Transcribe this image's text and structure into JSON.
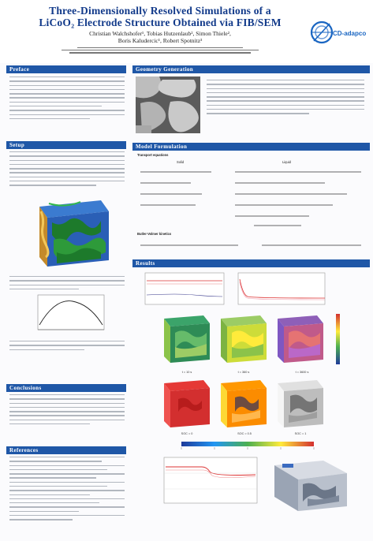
{
  "poster": {
    "title_line1": "Three-Dimensionally Resolved Simulations of a",
    "title_line2": "LiCoO₂ Electrode Structure Obtained via FIB/SEM",
    "authors_line1": "Christian Walchshofer¹, Tobias Hutzenlaub², Simon Thiele²,",
    "authors_line2": "Boris Kaludercic¹, Robert Spotnitz³",
    "logo_text": "CD-adapco"
  },
  "sections": {
    "preface": "Preface",
    "geometry": "Geometry Generation",
    "setup": "Setup",
    "model": "Model Formulation",
    "results": "Results",
    "conclusions": "Conclusions",
    "references": "References"
  },
  "model": {
    "transport_label": "Transport equations",
    "solid_label": "Solid",
    "liquid_label": "Liquid",
    "butler_label": "Butler-Volmer kinetics"
  },
  "results_labels": {
    "temp1": "t = 10 s",
    "temp2": "t = 360 s",
    "temp3": "t = 3600 s",
    "soc1": "SOC = 0",
    "soc2": "SOC = 0.5",
    "soc3": "SOC = 1"
  },
  "colors": {
    "section_bar": "#1f57a7",
    "title": "#123a8a",
    "logo": "#1a66c2"
  }
}
